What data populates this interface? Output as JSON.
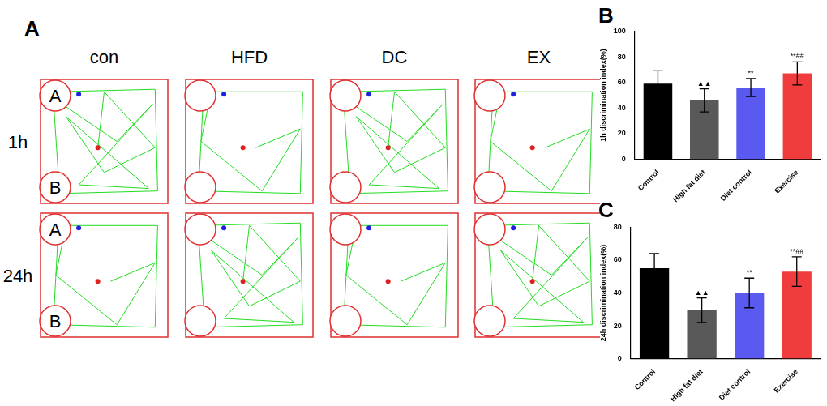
{
  "panel_a": {
    "label": "A",
    "groups": [
      "con",
      "HFD",
      "DC",
      "EX"
    ],
    "rows": [
      "1h",
      "24h"
    ],
    "object_labels": [
      "A",
      "B"
    ]
  },
  "chart_data": [
    {
      "type": "bar",
      "label": "B",
      "y_label": "1h discrimination index(%)",
      "categories": [
        "Control",
        "High fat diet",
        "Diet control",
        "Exercise"
      ],
      "values": [
        59,
        46,
        56,
        67
      ],
      "errors": [
        10,
        9,
        7,
        9
      ],
      "annotations": [
        null,
        "▲▲",
        "**",
        "**##"
      ],
      "colors": [
        "#000000",
        "#595959",
        "#5a5af0",
        "#f03c3c"
      ],
      "ylim": [
        0,
        100
      ],
      "yticks": [
        0,
        20,
        40,
        60,
        80,
        100
      ],
      "grid": false
    },
    {
      "type": "bar",
      "label": "C",
      "y_label": "24h discrimination index(%)",
      "categories": [
        "Control",
        "High fat diet",
        "Diet control",
        "Exercise"
      ],
      "values": [
        55,
        29.5,
        40,
        53
      ],
      "errors": [
        9,
        7.5,
        9,
        9
      ],
      "annotations": [
        null,
        "▲▲",
        "**",
        "**##"
      ],
      "colors": [
        "#000000",
        "#595959",
        "#5a5af0",
        "#f03c3c"
      ],
      "ylim": [
        0,
        80
      ],
      "yticks": [
        0,
        20,
        40,
        60,
        80
      ],
      "grid": false
    }
  ]
}
